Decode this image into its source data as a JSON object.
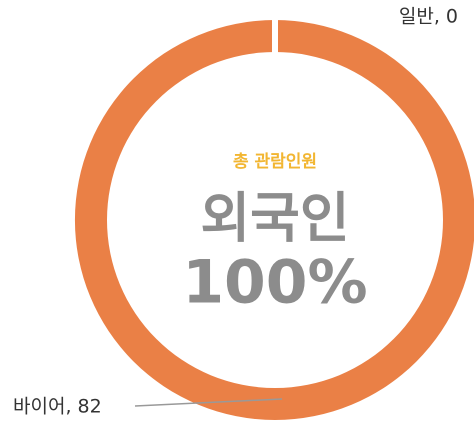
{
  "chart_data": {
    "type": "donut",
    "values": [
      0,
      82
    ],
    "value_labels": [
      "일반, 0",
      "바이어, 82"
    ],
    "color": "#ea8046",
    "center_caption": "총 관람인원",
    "center_title": "외국인",
    "center_value": "100%"
  }
}
